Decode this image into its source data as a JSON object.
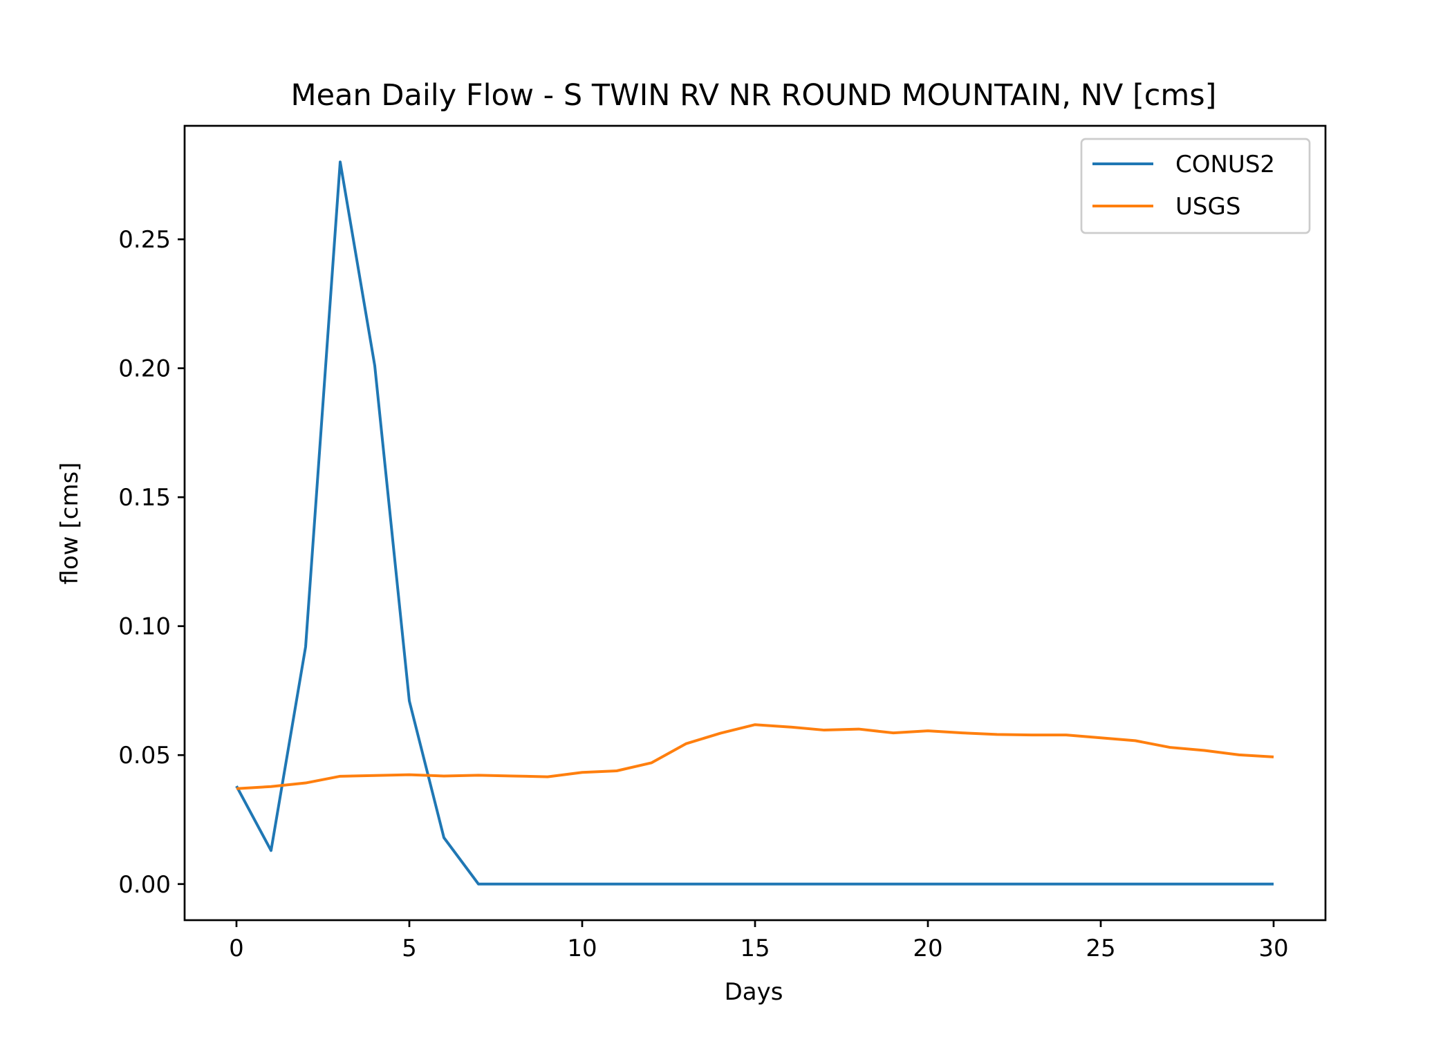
{
  "chart_data": {
    "type": "line",
    "title": "Mean Daily Flow - S TWIN RV NR ROUND MOUNTAIN, NV [cms]",
    "xlabel": "Days",
    "ylabel": "flow [cms]",
    "xlim": [
      -1.5,
      31.5
    ],
    "ylim": [
      -0.014,
      0.294
    ],
    "xticks": [
      0,
      5,
      10,
      15,
      20,
      25,
      30
    ],
    "xtick_labels": [
      "0",
      "5",
      "10",
      "15",
      "20",
      "25",
      "30"
    ],
    "yticks": [
      0.0,
      0.05,
      0.1,
      0.15,
      0.2,
      0.25
    ],
    "ytick_labels": [
      "0.00",
      "0.05",
      "0.10",
      "0.15",
      "0.20",
      "0.25"
    ],
    "grid": false,
    "legend_position": "top-right",
    "x": [
      0,
      1,
      2,
      3,
      4,
      5,
      6,
      7,
      8,
      9,
      10,
      11,
      12,
      13,
      14,
      15,
      16,
      17,
      18,
      19,
      20,
      21,
      22,
      23,
      24,
      25,
      26,
      27,
      28,
      29,
      30
    ],
    "series": [
      {
        "name": "CONUS2",
        "color": "#1f77b4",
        "values": [
          0.038,
          0.013,
          0.092,
          0.28,
          0.201,
          0.071,
          0.018,
          0.0,
          0.0,
          0.0,
          0.0,
          0.0,
          0.0,
          0.0,
          0.0,
          0.0,
          0.0,
          0.0,
          0.0,
          0.0,
          0.0,
          0.0,
          0.0,
          0.0,
          0.0,
          0.0,
          0.0,
          0.0,
          0.0,
          0.0,
          0.0
        ]
      },
      {
        "name": "USGS",
        "color": "#ff7f0e",
        "values": [
          0.037,
          0.0378,
          0.0392,
          0.0418,
          0.0421,
          0.0424,
          0.0419,
          0.0422,
          0.0419,
          0.0416,
          0.0433,
          0.0439,
          0.047,
          0.0544,
          0.0585,
          0.0618,
          0.0609,
          0.0597,
          0.0601,
          0.0586,
          0.0594,
          0.0586,
          0.058,
          0.0578,
          0.0578,
          0.0567,
          0.0556,
          0.053,
          0.0518,
          0.0501,
          0.0493
        ]
      }
    ]
  }
}
